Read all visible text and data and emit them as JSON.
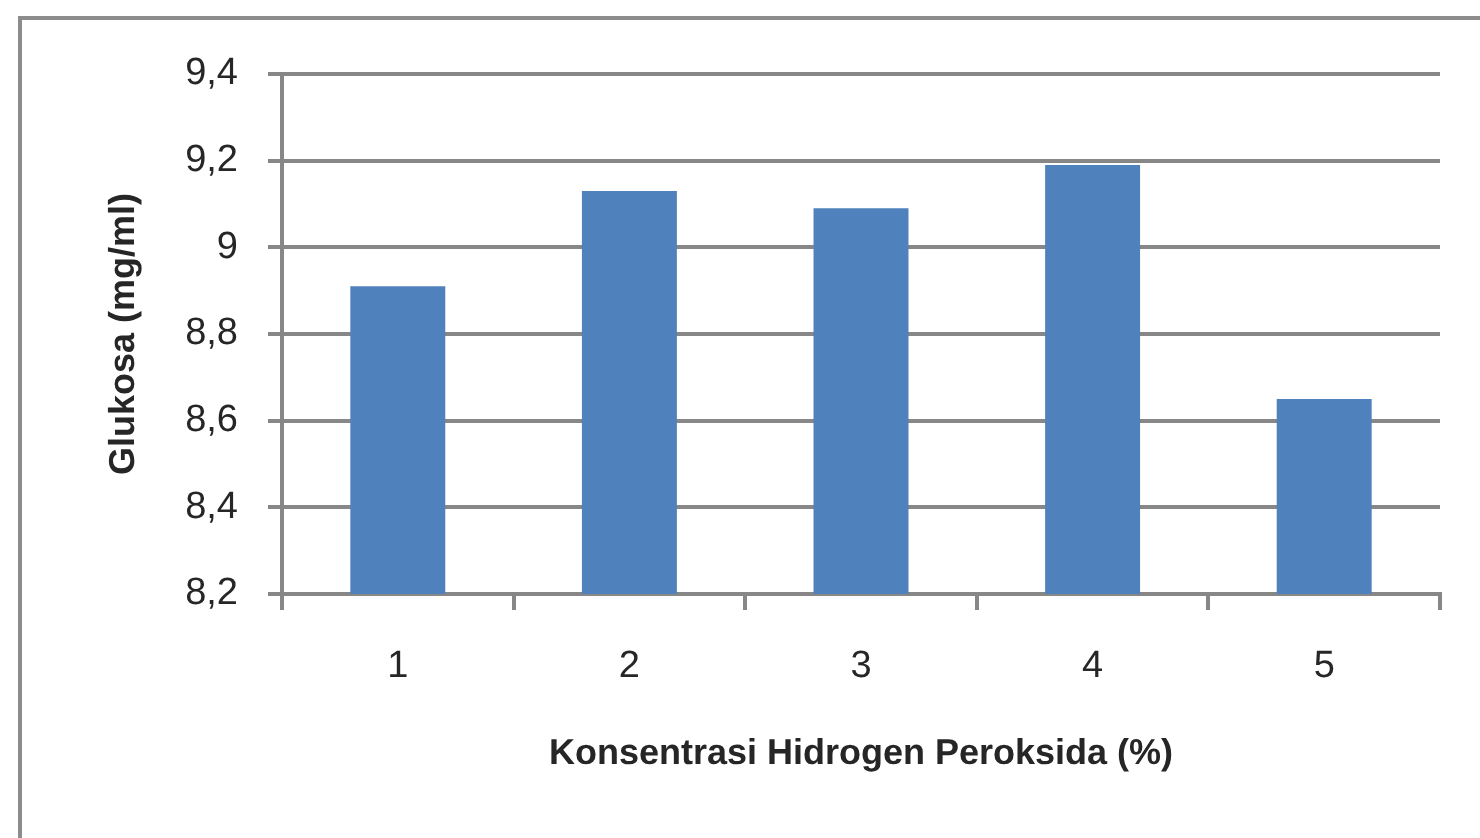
{
  "chart_data": {
    "type": "bar",
    "xlabel": "Konsentrasi Hidrogen Peroksida (%)",
    "ylabel": "Glukosa (mg/ml)",
    "categories": [
      "1",
      "2",
      "3",
      "4",
      "5"
    ],
    "values": [
      8.91,
      9.13,
      9.09,
      9.19,
      8.65
    ],
    "color": "#4f81bd",
    "ylim": [
      8.2,
      9.4
    ],
    "yticks": [
      {
        "value": 8.2,
        "label": "8,2"
      },
      {
        "value": 8.4,
        "label": "8,4"
      },
      {
        "value": 8.6,
        "label": "8,6"
      },
      {
        "value": 8.8,
        "label": "8,8"
      },
      9,
      {
        "value": 9.2,
        "label": "9,2"
      },
      {
        "value": 9.4,
        "label": "9,4"
      }
    ],
    "grid": "y",
    "legend": false
  }
}
